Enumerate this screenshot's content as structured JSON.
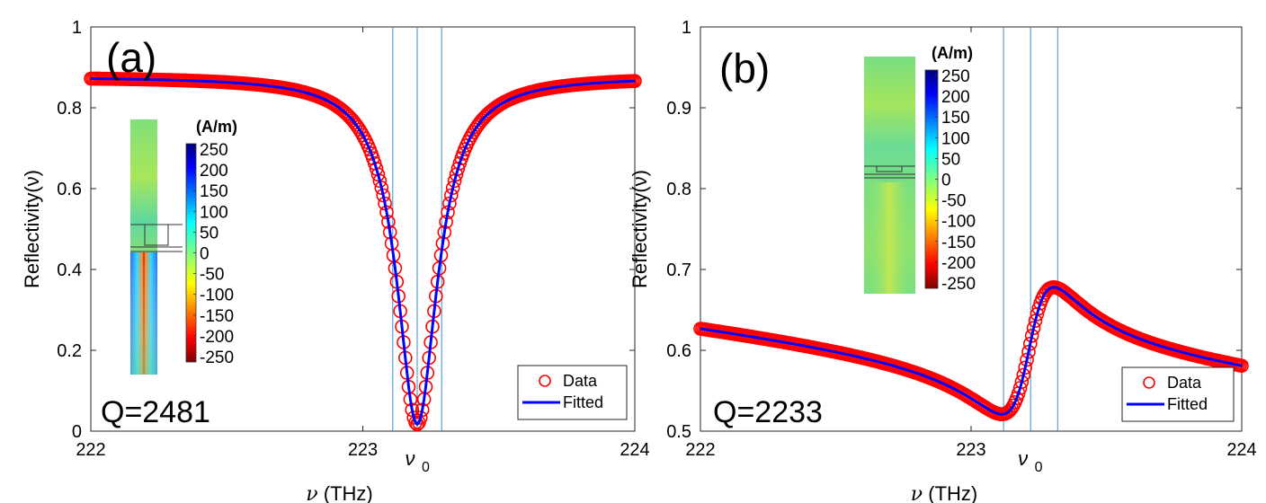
{
  "chart_data": [
    {
      "type": "scatter",
      "panel_label": "(a)",
      "annotation": "Q=2481",
      "xlabel_symbol": "ν",
      "xlabel_unit": " (THz)",
      "ylabel": "Reflectivity(ν)",
      "xlim": [
        222,
        224
      ],
      "ylim": [
        0,
        1
      ],
      "xticks": [
        "222",
        "223",
        "224"
      ],
      "xtick_values": [
        222,
        223,
        224
      ],
      "yticks": [
        "0",
        "0.2",
        "0.4",
        "0.6",
        "0.8",
        "1"
      ],
      "ytick_values": [
        0,
        0.2,
        0.4,
        0.6,
        0.8,
        1
      ],
      "nu0_label_symbol": "ν",
      "nu0_label_sub": "0",
      "vlines": [
        223.11,
        223.2,
        223.29
      ],
      "legend": {
        "placement": "bottom-right",
        "entries": [
          "Data",
          "Fitted"
        ]
      },
      "model": {
        "kind": "fano",
        "R0": 0.877,
        "A": -0.86,
        "nu0": 223.2,
        "gamma": 0.09,
        "q": 0.05
      },
      "series": [
        {
          "name": "Data",
          "style": "circles",
          "color": "#ff0000"
        },
        {
          "name": "Fitted",
          "style": "line",
          "color": "#0000ff"
        }
      ],
      "inset": {
        "title": "(A/m)",
        "colorbar_ticks": [
          "250",
          "200",
          "150",
          "100",
          "50",
          "0",
          "-50",
          "-100",
          "-150",
          "-200",
          "-250"
        ],
        "field": "strong"
      }
    },
    {
      "type": "scatter",
      "panel_label": "(b)",
      "annotation": "Q=2233",
      "xlabel_symbol": "ν",
      "xlabel_unit": " (THz)",
      "ylabel": "Reflectivity(ν)",
      "xlim": [
        222,
        224
      ],
      "ylim": [
        0.5,
        1
      ],
      "xticks": [
        "222",
        "223",
        "224"
      ],
      "xtick_values": [
        222,
        223,
        224
      ],
      "yticks": [
        "0.5",
        "0.6",
        "0.7",
        "0.8",
        "0.9",
        "1"
      ],
      "ytick_values": [
        0.5,
        0.6,
        0.7,
        0.8,
        0.9,
        1
      ],
      "nu0_label_symbol": "ν",
      "nu0_label_sub": "0",
      "vlines": [
        223.12,
        223.22,
        223.32
      ],
      "legend": {
        "placement": "bottom-right",
        "entries": [
          "Data",
          "Fitted"
        ]
      },
      "model": {
        "kind": "fano",
        "B": 0.64,
        "S": -0.08,
        "A": 0.165,
        "nu0": 223.218,
        "gamma": 0.1,
        "q": 1.1
      },
      "series": [
        {
          "name": "Data",
          "style": "circles",
          "color": "#ff0000"
        },
        {
          "name": "Fitted",
          "style": "line",
          "color": "#0000ff"
        }
      ],
      "inset": {
        "title": "(A/m)",
        "colorbar_ticks": [
          "250",
          "200",
          "150",
          "100",
          "50",
          "0",
          "-50",
          "-100",
          "-150",
          "-200",
          "-250"
        ],
        "field": "weak"
      }
    }
  ]
}
